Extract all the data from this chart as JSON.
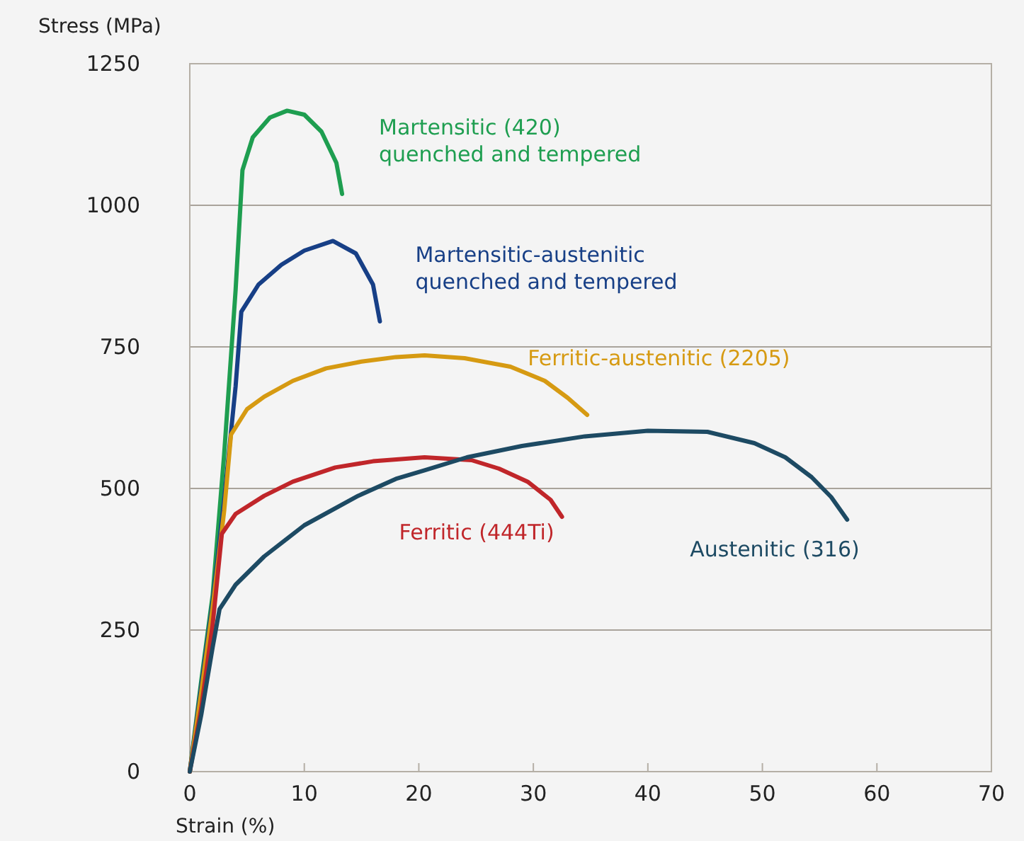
{
  "chart_data": {
    "type": "line",
    "xlabel": "Strain (%)",
    "ylabel": "Stress (MPa)",
    "xlim": [
      0,
      70
    ],
    "ylim": [
      0,
      1250
    ],
    "xticks": [
      0,
      10,
      20,
      30,
      40,
      50,
      60,
      70
    ],
    "yticks": [
      0,
      250,
      500,
      750,
      1000,
      1250
    ],
    "grid": "y",
    "legend": false,
    "marker": "none",
    "line_style": "solid",
    "series": [
      {
        "name": "Martensitic (420)\nquenched and tempered",
        "color": "#1e9e50",
        "x": [
          0,
          1,
          2,
          3,
          4,
          4.6,
          5.5,
          7,
          8.5,
          10,
          11.5,
          12.8,
          13.3
        ],
        "values": [
          0,
          160,
          312,
          560,
          850,
          1062,
          1120,
          1155,
          1167,
          1160,
          1130,
          1075,
          1020
        ]
      },
      {
        "name": "Martensitic-austenitic\nquenched and tempered",
        "color": "#173f86",
        "x": [
          0,
          1,
          2,
          3,
          4,
          4.5,
          6,
          8,
          10,
          12.5,
          14.5,
          16,
          16.6
        ],
        "values": [
          0,
          150,
          300,
          480,
          680,
          812,
          860,
          895,
          920,
          937,
          915,
          860,
          795
        ]
      },
      {
        "name": "Ferritic-austenitic (2205)",
        "color": "#d69a12",
        "x": [
          0,
          1,
          2,
          3,
          3.6,
          5,
          6.5,
          9,
          11.9,
          15,
          18,
          20.5,
          24,
          28,
          31,
          33,
          34.7
        ],
        "values": [
          0,
          140,
          290,
          460,
          595,
          640,
          662,
          690,
          712,
          724,
          732,
          735,
          730,
          715,
          690,
          660,
          630
        ]
      },
      {
        "name": "Ferritic (444Ti)",
        "color": "#c0262a",
        "x": [
          0,
          1,
          2,
          2.8,
          4,
          6.5,
          9,
          12.7,
          16,
          20.5,
          24.6,
          27,
          29.5,
          31.5,
          32.5
        ],
        "values": [
          0,
          112,
          260,
          420,
          455,
          487,
          512,
          537,
          548,
          555,
          550,
          535,
          512,
          480,
          450
        ]
      },
      {
        "name": "Austenitic (316)",
        "color": "#1d4a63",
        "x": [
          0,
          1,
          2,
          2.6,
          4,
          6.5,
          10,
          14.7,
          18,
          20.5,
          24.2,
          29,
          34.5,
          40,
          45.2,
          49.3,
          52,
          54.3,
          56,
          57.4
        ],
        "values": [
          0,
          100,
          220,
          287,
          330,
          380,
          435,
          487,
          517,
          532,
          555,
          575,
          592,
          602,
          600,
          580,
          555,
          520,
          485,
          445
        ]
      }
    ]
  }
}
